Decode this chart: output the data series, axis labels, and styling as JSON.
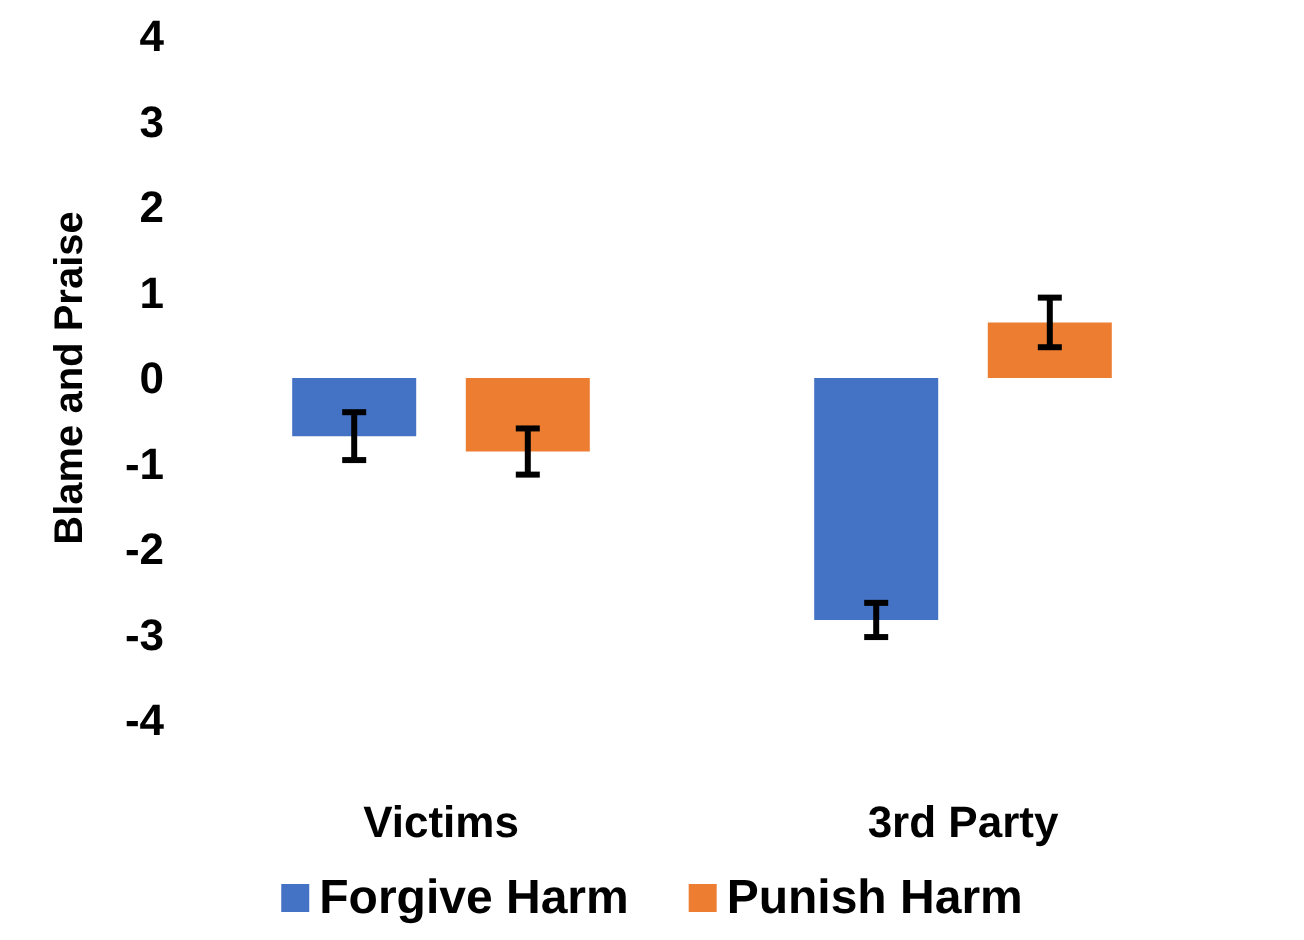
{
  "chart_data": {
    "type": "bar",
    "ylabel": "Blame and Praise",
    "categories": [
      "Victims",
      "3rd Party"
    ],
    "series": [
      {
        "name": "Forgive Harm",
        "color": "#4472c4",
        "values": [
          -0.68,
          -2.83
        ],
        "errors": [
          0.28,
          0.2
        ]
      },
      {
        "name": "Punish Harm",
        "color": "#ed7d31",
        "values": [
          -0.86,
          0.65
        ],
        "errors": [
          0.27,
          0.29
        ]
      }
    ],
    "ylim": [
      -4,
      4
    ],
    "yticks": [
      -4,
      -3,
      -2,
      -1,
      0,
      1,
      2,
      3,
      4
    ],
    "grid": false,
    "legend": "bottom"
  }
}
